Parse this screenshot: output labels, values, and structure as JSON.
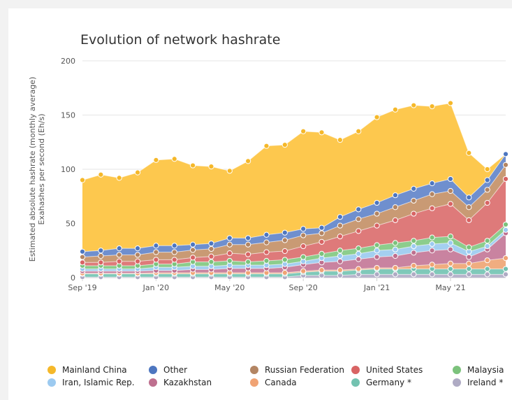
{
  "chart_data": {
    "type": "area",
    "stacked": true,
    "title": "Evolution of network hashrate",
    "ylabel_lines": [
      "Estimated absolute hashrate (monthly average)",
      "Exahashes per second (Eh/s)"
    ],
    "xlabel": "",
    "ylim": [
      0,
      200
    ],
    "yticks": [
      0,
      50,
      100,
      150,
      200
    ],
    "grid": true,
    "legend_position": "bottom",
    "x": [
      "Sep '19",
      "Oct '19",
      "Nov '19",
      "Dec '19",
      "Jan '20",
      "Feb '20",
      "Mar '20",
      "Apr '20",
      "May '20",
      "Jun '20",
      "Jul '20",
      "Aug '20",
      "Sep '20",
      "Oct '20",
      "Nov '20",
      "Dec '20",
      "Jan '21",
      "Feb '21",
      "Mar '21",
      "Apr '21",
      "May '21",
      "Jun '21",
      "Jul '21",
      "Aug '21"
    ],
    "xticks": [
      {
        "index": 0,
        "label": "Sep '19"
      },
      {
        "index": 4,
        "label": "Jan '20"
      },
      {
        "index": 8,
        "label": "May '20"
      },
      {
        "index": 12,
        "label": "Sep '20"
      },
      {
        "index": 16,
        "label": "Jan '21"
      },
      {
        "index": 20,
        "label": "May '21"
      }
    ],
    "series": [
      {
        "name": "Ireland *",
        "color": "#b8b4cc",
        "values": [
          0.5,
          0.5,
          0.5,
          0.5,
          0.5,
          0.5,
          0.5,
          0.5,
          0.5,
          0.5,
          0.5,
          0.5,
          2,
          2,
          2,
          3,
          3,
          3,
          3,
          3,
          3,
          3,
          3,
          3
        ]
      },
      {
        "name": "Germany *",
        "color": "#7fc9b9",
        "values": [
          3,
          3,
          3,
          3,
          3,
          3,
          3,
          3,
          3,
          3,
          3,
          3,
          3,
          4,
          4,
          4,
          5,
          5,
          5,
          5,
          5,
          5,
          5,
          5
        ]
      },
      {
        "name": "Canada",
        "color": "#f0ad80",
        "values": [
          0.5,
          0.5,
          0.5,
          0.5,
          1,
          1,
          1,
          1,
          1,
          1,
          1,
          1,
          1,
          1,
          1,
          1,
          1,
          1,
          3,
          4,
          5,
          5,
          8,
          10
        ]
      },
      {
        "name": "Kazakhstan",
        "color": "#c983a0",
        "values": [
          2,
          2,
          2,
          2,
          2,
          2,
          3,
          3,
          4,
          4,
          4,
          5,
          6,
          7,
          8,
          9,
          10,
          11,
          12,
          13,
          13,
          6,
          10,
          23
        ]
      },
      {
        "name": "Iran, Islamic Rep.",
        "color": "#a4cff0",
        "values": [
          2,
          2,
          2,
          2,
          3,
          3,
          3,
          3,
          3,
          3,
          3,
          3,
          3,
          4,
          5,
          5,
          6,
          6,
          6,
          6,
          6,
          5,
          3,
          3
        ]
      },
      {
        "name": "Malaysia",
        "color": "#8ccd8c",
        "values": [
          3,
          3,
          3,
          3,
          3,
          3,
          4,
          4,
          4,
          3,
          4,
          4,
          4,
          4,
          5,
          5,
          5,
          6,
          5,
          6,
          6,
          4,
          5,
          5
        ]
      },
      {
        "name": "United States",
        "color": "#de7a7a",
        "values": [
          3,
          3,
          4,
          4,
          4,
          4,
          4,
          5,
          7,
          7,
          8,
          8,
          10,
          11,
          13,
          16,
          18,
          21,
          25,
          27,
          30,
          25,
          35,
          42
        ]
      },
      {
        "name": "Russian Federation",
        "color": "#c99a74",
        "values": [
          5,
          6,
          6,
          6,
          7,
          7,
          7,
          7,
          8,
          9,
          9,
          10,
          10,
          8,
          10,
          11,
          11,
          12,
          12,
          13,
          12,
          12,
          12,
          13
        ]
      },
      {
        "name": "Other",
        "color": "#6f8fce",
        "values": [
          5,
          5,
          6,
          6,
          6,
          6,
          5,
          5,
          6,
          6,
          7,
          7,
          6,
          5,
          8,
          9,
          10,
          11,
          11,
          10,
          11,
          9,
          9,
          10
        ]
      },
      {
        "name": "Mainland China",
        "color": "#fdc84e",
        "values": [
          66,
          70,
          65,
          70,
          79,
          80,
          73,
          71,
          62,
          71,
          82,
          81,
          90,
          88,
          71,
          72,
          79,
          79,
          77,
          71,
          70,
          41,
          10,
          0
        ]
      }
    ]
  },
  "legend": [
    {
      "label": "Mainland China",
      "color": "#f5b82a"
    },
    {
      "label": "Other",
      "color": "#4d76c0"
    },
    {
      "label": "Russian Federation",
      "color": "#b38563"
    },
    {
      "label": "United States",
      "color": "#d86464"
    },
    {
      "label": "Malaysia",
      "color": "#7cc27c"
    },
    {
      "label": "Iran, Islamic Rep.",
      "color": "#9ccaf0"
    },
    {
      "label": "Kazakhstan",
      "color": "#be708f"
    },
    {
      "label": "Canada",
      "color": "#f0a374"
    },
    {
      "label": "Germany *",
      "color": "#73c2b0"
    },
    {
      "label": "Ireland *",
      "color": "#afabc4"
    }
  ]
}
